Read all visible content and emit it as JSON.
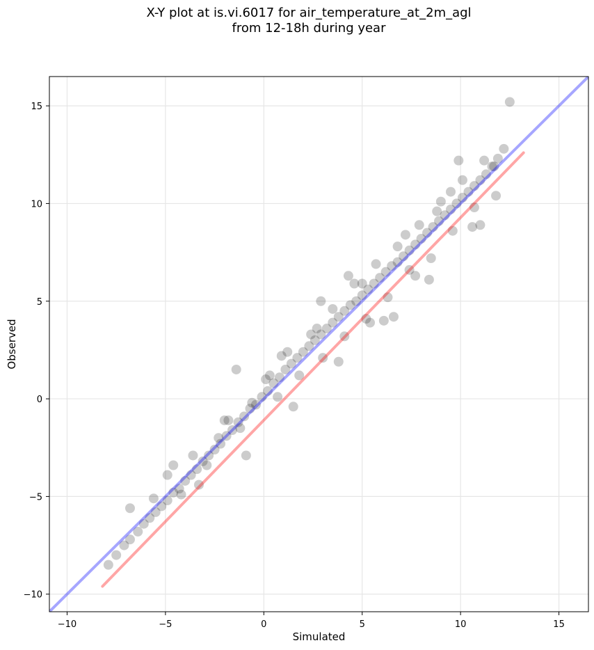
{
  "chart_data": {
    "type": "scatter",
    "title": "X-Y plot at is.vi.6017 for air_temperature_at_2m_agl",
    "subtitle": "from 12-18h during year",
    "xlabel": "Simulated",
    "ylabel": "Observed",
    "xlim": [
      -10.9,
      16.5
    ],
    "ylim": [
      -10.9,
      16.5
    ],
    "xticks": [
      -10,
      -5,
      0,
      5,
      10,
      15
    ],
    "yticks": [
      -10,
      -5,
      0,
      5,
      10,
      15
    ],
    "xtick_labels": [
      "−10",
      "−5",
      "0",
      "5",
      "10",
      "15"
    ],
    "ytick_labels": [
      "−10",
      "−5",
      "0",
      "5",
      "10",
      "15"
    ],
    "grid": true,
    "colors": {
      "points": "#000000",
      "identity_line": "#0000ff",
      "fit_line": "#ff0000",
      "grid": "#e6e6e6"
    },
    "lines": [
      {
        "name": "",
        "kind": "1:1",
        "color": "#0000ff",
        "alpha": 0.35,
        "x": [
          -10.9,
          16.5
        ],
        "y": [
          -10.9,
          16.5
        ]
      },
      {
        "name": "",
        "kind": "linear-fit",
        "color": "#ff0000",
        "alpha": 0.35,
        "x": [
          -8.2,
          13.2
        ],
        "y": [
          -9.6,
          12.6
        ]
      }
    ],
    "series": [
      {
        "name": "",
        "marker_alpha": 0.08,
        "x": [
          -7.9,
          -7.5,
          -7.1,
          -6.8,
          -6.4,
          -6.1,
          -5.8,
          -5.5,
          -5.2,
          -4.9,
          -4.6,
          -4.3,
          -4.0,
          -3.7,
          -3.4,
          -3.1,
          -2.8,
          -2.5,
          -2.2,
          -1.9,
          -1.6,
          -1.3,
          -1.0,
          -0.7,
          -0.4,
          -0.1,
          0.2,
          0.5,
          0.8,
          1.1,
          1.4,
          1.7,
          2.0,
          2.3,
          2.6,
          2.9,
          3.2,
          3.5,
          3.8,
          4.1,
          4.4,
          4.7,
          5.0,
          5.3,
          5.6,
          5.9,
          6.2,
          6.5,
          6.8,
          7.1,
          7.4,
          7.7,
          8.0,
          8.3,
          8.6,
          8.9,
          9.2,
          9.5,
          9.8,
          10.1,
          10.4,
          10.7,
          11.0,
          11.3,
          11.6,
          11.9,
          12.2,
          12.5,
          -6.8,
          -5.6,
          -4.9,
          -4.2,
          -3.6,
          -2.9,
          -2.3,
          -1.8,
          -1.2,
          -0.6,
          0.1,
          0.7,
          1.2,
          1.8,
          2.4,
          3.0,
          3.5,
          4.1,
          4.6,
          5.2,
          5.7,
          6.3,
          6.8,
          7.4,
          7.9,
          8.5,
          9.0,
          9.6,
          10.1,
          10.7,
          11.2,
          11.8,
          -4.6,
          -3.3,
          -2.0,
          -0.9,
          0.3,
          1.5,
          2.7,
          3.8,
          5.0,
          6.1,
          7.2,
          8.4,
          9.5,
          10.6,
          11.7,
          -1.4,
          0.9,
          2.9,
          4.3,
          5.4,
          6.6,
          7.7,
          8.8,
          9.9,
          11.0
        ],
        "y": [
          -8.5,
          -8.0,
          -7.5,
          -7.2,
          -6.8,
          -6.4,
          -6.1,
          -5.8,
          -5.5,
          -5.2,
          -4.8,
          -4.6,
          -4.2,
          -3.9,
          -3.6,
          -3.2,
          -2.9,
          -2.6,
          -2.3,
          -1.9,
          -1.6,
          -1.2,
          -0.9,
          -0.5,
          -0.3,
          0.1,
          0.4,
          0.8,
          1.1,
          1.5,
          1.8,
          2.1,
          2.4,
          2.7,
          3.0,
          3.3,
          3.6,
          3.9,
          4.2,
          4.5,
          4.8,
          5.0,
          5.3,
          5.6,
          5.9,
          6.2,
          6.5,
          6.8,
          7.0,
          7.3,
          7.6,
          7.9,
          8.2,
          8.5,
          8.8,
          9.1,
          9.4,
          9.7,
          10.0,
          10.3,
          10.6,
          10.9,
          11.2,
          11.5,
          11.9,
          12.3,
          12.8,
          15.2,
          -5.6,
          -5.1,
          -3.9,
          -4.9,
          -2.9,
          -3.4,
          -2.0,
          -1.1,
          -1.5,
          -0.2,
          1.0,
          0.1,
          2.4,
          1.2,
          3.3,
          2.1,
          4.6,
          3.2,
          5.9,
          4.1,
          6.9,
          5.2,
          7.8,
          6.6,
          8.9,
          7.2,
          10.1,
          8.6,
          11.2,
          9.8,
          12.2,
          10.4,
          -3.4,
          -4.4,
          -1.1,
          -2.9,
          1.2,
          -0.4,
          3.6,
          1.9,
          5.9,
          4.0,
          8.4,
          6.1,
          10.6,
          8.8,
          11.9,
          1.5,
          2.2,
          5.0,
          6.3,
          3.9,
          4.2,
          6.3,
          9.6,
          12.2,
          8.9
        ]
      }
    ]
  }
}
